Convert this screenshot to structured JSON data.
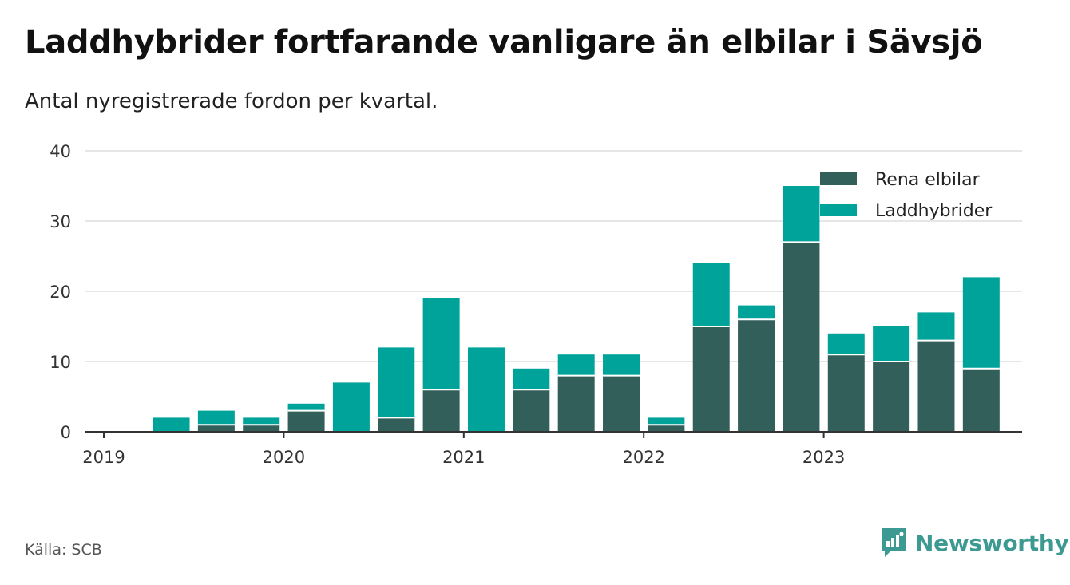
{
  "title": "Laddhybrider fortfarande vanligare än elbilar i Sävsjö",
  "subtitle": "Antal nyregistrerade fordon per kvartal.",
  "source": "Källa: SCB",
  "brand": "Newsworthy",
  "colors": {
    "elbilar": "#335f5b",
    "laddhybrider": "#00a39a",
    "grid": "#dddddd",
    "axis": "#333333"
  },
  "chart_data": {
    "type": "bar",
    "stacked": true,
    "title": "Laddhybrider fortfarande vanligare än elbilar i Sävsjö",
    "subtitle": "Antal nyregistrerade fordon per kvartal.",
    "categories": [
      "2019 Q1",
      "2019 Q2",
      "2019 Q3",
      "2019 Q4",
      "2020 Q1",
      "2020 Q2",
      "2020 Q3",
      "2020 Q4",
      "2021 Q1",
      "2021 Q2",
      "2021 Q3",
      "2021 Q4",
      "2022 Q1",
      "2022 Q2",
      "2022 Q3",
      "2022 Q4",
      "2023 Q1",
      "2023 Q2",
      "2023 Q3",
      "2023 Q4"
    ],
    "series": [
      {
        "name": "Rena elbilar",
        "values": [
          0,
          0,
          1,
          1,
          3,
          0,
          2,
          6,
          0,
          6,
          8,
          8,
          1,
          15,
          16,
          27,
          11,
          10,
          13,
          9
        ]
      },
      {
        "name": "Laddhybrider",
        "values": [
          0,
          2,
          2,
          1,
          1,
          7,
          10,
          13,
          12,
          3,
          3,
          3,
          1,
          9,
          2,
          8,
          3,
          5,
          4,
          13
        ]
      }
    ],
    "x_tick_labels": [
      "2019",
      "2020",
      "2021",
      "2022",
      "2023"
    ],
    "y_ticks": [
      0,
      10,
      20,
      30,
      40
    ],
    "ylim": [
      0,
      40
    ],
    "xlabel": "",
    "ylabel": "",
    "legend_position": "top-right",
    "grid": true
  }
}
